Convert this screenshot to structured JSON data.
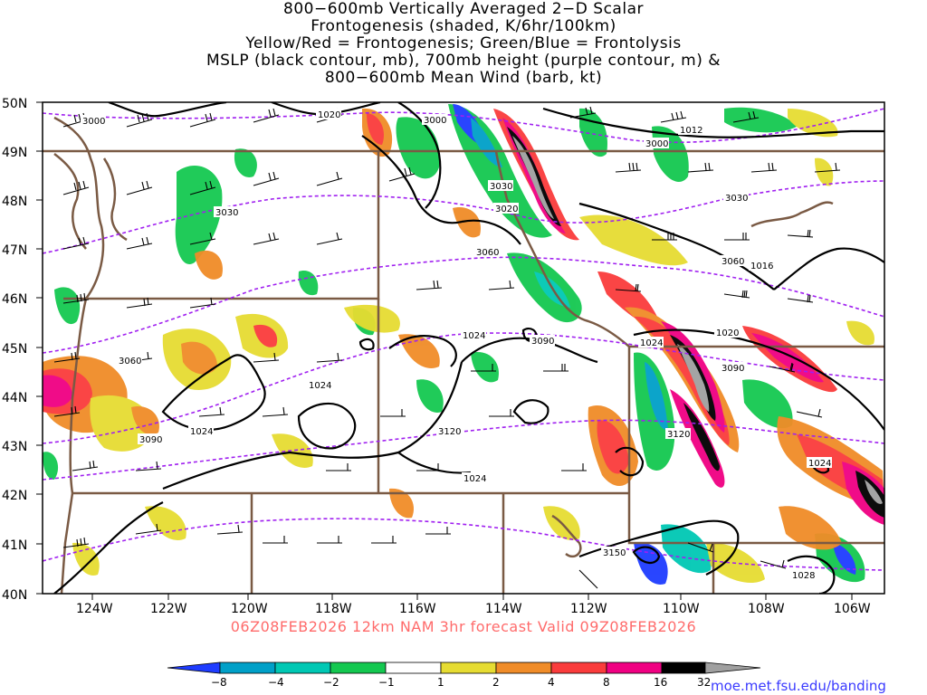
{
  "title_lines": [
    "800−600mb Vertically Averaged 2−D Scalar",
    "Frontogenesis (shaded, K/6hr/100km)",
    "Yellow/Red = Frontogenesis;  Green/Blue = Frontolysis",
    "MSLP (black contour, mb), 700mb height (purple contour, m) &",
    "800−600mb Mean Wind (barb, kt)"
  ],
  "lat_labels": [
    "50N",
    "49N",
    "48N",
    "47N",
    "46N",
    "45N",
    "44N",
    "43N",
    "42N",
    "41N",
    "40N"
  ],
  "lon_labels": [
    "124W",
    "122W",
    "120W",
    "118W",
    "116W",
    "114W",
    "112W",
    "110W",
    "108W",
    "106W"
  ],
  "footer": "06Z08FEB2026 12km NAM 3hr forecast Valid 09Z08FEB2026",
  "credit": "moe.met.fsu.edu/banding",
  "colorbar": {
    "labels": [
      "−8",
      "−4",
      "−2",
      "−1",
      "1",
      "2",
      "4",
      "8",
      "16",
      "32"
    ],
    "colors": [
      "#1e3cff",
      "#00a0c8",
      "#00c8b4",
      "#14c850",
      "#ffffff",
      "#e6dc32",
      "#f08c28",
      "#fa3c3c",
      "#f00082",
      "#000000",
      "#a0a0a0"
    ]
  },
  "contour_labels": {
    "pressure": [
      "1020",
      "1012",
      "1016",
      "1020",
      "1024",
      "1024",
      "1024",
      "1024",
      "1024",
      "1024",
      "1028"
    ],
    "height": [
      "3000",
      "3000",
      "3000",
      "3030",
      "3030",
      "3030",
      "3060",
      "3060",
      "3060",
      "3090",
      "3090",
      "3090",
      "3120",
      "3120",
      "3150",
      "3020"
    ]
  },
  "map_colors": {
    "pressure": "#000000",
    "height": "#a020f0",
    "border": "#7a5a44"
  }
}
